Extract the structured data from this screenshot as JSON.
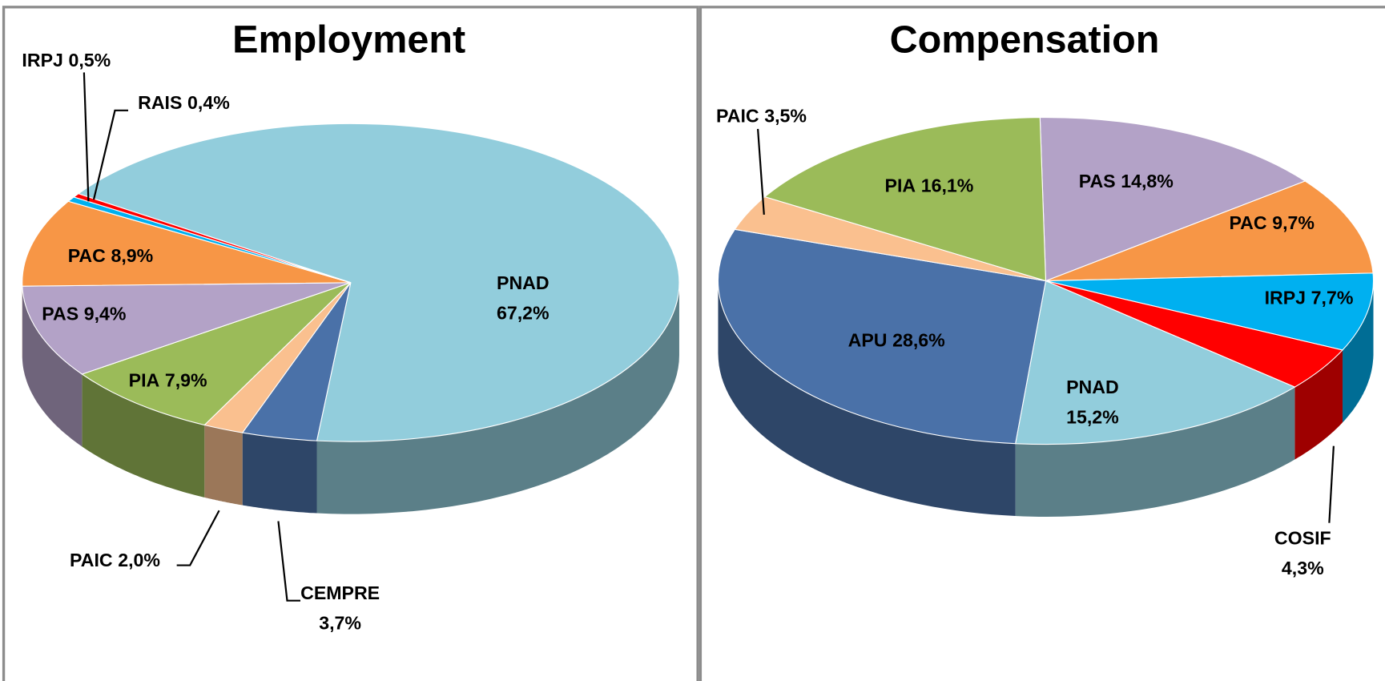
{
  "chart_data": [
    {
      "type": "pie",
      "title": "Employment",
      "categories": [
        "PNAD",
        "CEMPRE",
        "PAIC",
        "PIA",
        "PAS",
        "PAC",
        "IRPJ",
        "RAIS"
      ],
      "values": [
        67.2,
        3.7,
        2.0,
        7.9,
        9.4,
        8.9,
        0.5,
        0.4
      ],
      "value_labels": [
        "67,2%",
        "3,7%",
        "2,0%",
        "7,9%",
        "9,4%",
        "8,9%",
        "0,5%",
        "0,4%"
      ],
      "colors": [
        "#92cddc",
        "#4a71a8",
        "#fac08f",
        "#9bbb59",
        "#b3a2c7",
        "#f79646",
        "#00b0f0",
        "#ff0000"
      ]
    },
    {
      "type": "pie",
      "title": "Compensation",
      "categories": [
        "PAS",
        "PAC",
        "IRPJ",
        "COSIF",
        "PNAD",
        "APU",
        "PAIC",
        "PIA"
      ],
      "values": [
        14.8,
        9.7,
        7.7,
        4.3,
        15.2,
        28.6,
        3.5,
        16.1
      ],
      "value_labels": [
        "14,8%",
        "9,7%",
        "7,7%",
        "4,3%",
        "15,2%",
        "28,6%",
        "3,5%",
        "16,1%"
      ],
      "colors": [
        "#b3a2c7",
        "#f79646",
        "#00b0f0",
        "#ff0000",
        "#92cddc",
        "#4a71a8",
        "#fac08f",
        "#9bbb59"
      ]
    }
  ]
}
